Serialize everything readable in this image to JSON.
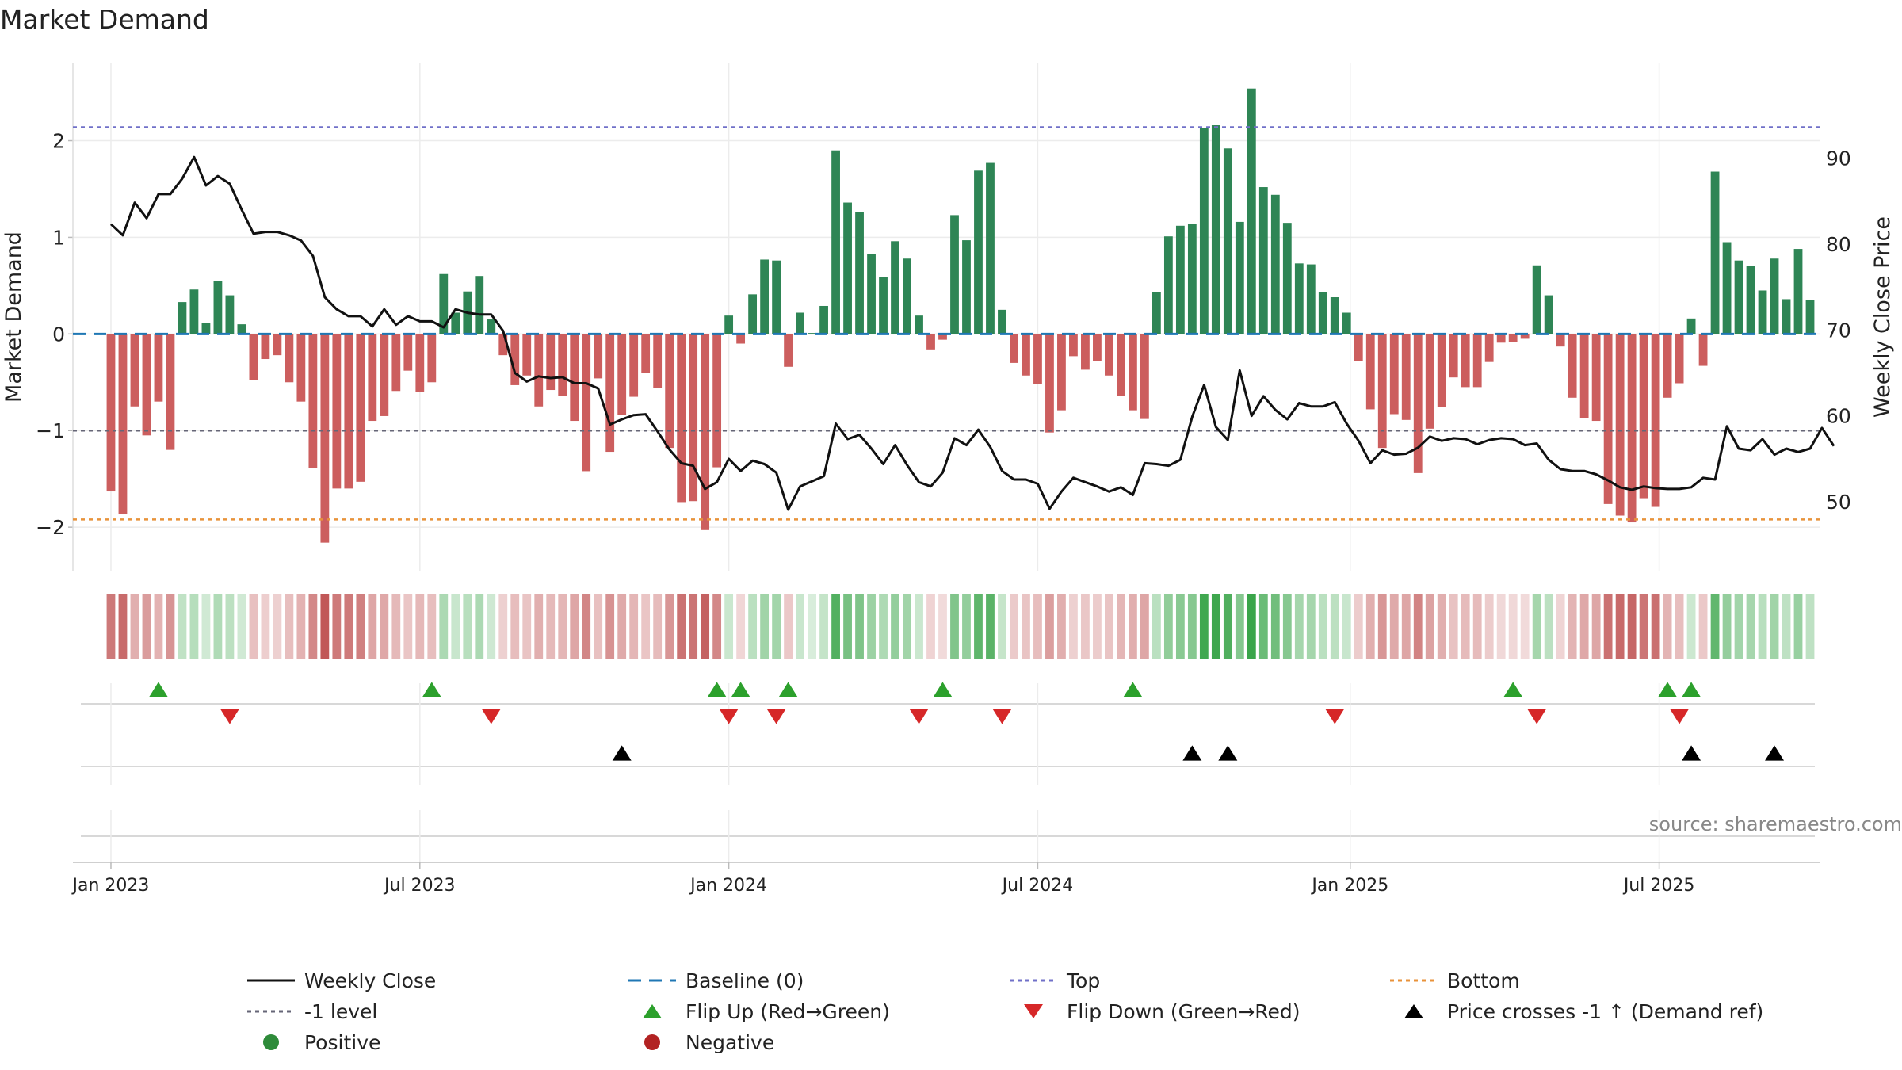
{
  "chart_data": {
    "type": "bar",
    "title": "Market Demand",
    "ylabel_left": "Market Demand",
    "ylabel_right": "Weekly Close Price",
    "source": "source: sharemaestro.com",
    "ylim_left": [
      -2.45,
      2.8
    ],
    "ylim_right": [
      42,
      101
    ],
    "yticks_left": [
      {
        "v": 2,
        "label": "2"
      },
      {
        "v": 1,
        "label": "1"
      },
      {
        "v": 0,
        "label": "0"
      },
      {
        "v": -1,
        "label": "−1"
      },
      {
        "v": -2,
        "label": "−2"
      }
    ],
    "yticks_right": [
      {
        "v": 90,
        "label": "90"
      },
      {
        "v": 80,
        "label": "80"
      },
      {
        "v": 70,
        "label": "70"
      },
      {
        "v": 60,
        "label": "60"
      },
      {
        "v": 50,
        "label": "50"
      }
    ],
    "x_range_weeks": [
      -3.2,
      143.8
    ],
    "xticks": [
      {
        "week": 0,
        "label": "Jan 2023"
      },
      {
        "week": 26,
        "label": "Jul 2023"
      },
      {
        "week": 52,
        "label": "Jan 2024"
      },
      {
        "week": 78,
        "label": "Jul 2024"
      },
      {
        "week": 104.3,
        "label": "Jan 2025"
      },
      {
        "week": 130.3,
        "label": "Jul 2025"
      }
    ],
    "levels": {
      "top": 2.14,
      "bottom": -1.92,
      "minus_one": -1.0,
      "baseline": 0
    },
    "demand": [
      -1.63,
      -1.86,
      -0.75,
      -1.05,
      -0.7,
      -1.2,
      0.33,
      0.46,
      0.11,
      0.55,
      0.4,
      0.1,
      -0.48,
      -0.26,
      -0.22,
      -0.5,
      -0.7,
      -1.39,
      -2.16,
      -1.6,
      -1.6,
      -1.53,
      -0.9,
      -0.85,
      -0.59,
      -0.38,
      -0.6,
      -0.5,
      0.62,
      0.22,
      0.44,
      0.6,
      0.15,
      -0.22,
      -0.53,
      -0.43,
      -0.75,
      -0.58,
      -0.64,
      -0.9,
      -1.42,
      -0.46,
      -1.22,
      -0.84,
      -0.65,
      -0.4,
      -0.56,
      -1.18,
      -1.74,
      -1.73,
      -2.03,
      -1.38,
      0.19,
      -0.1,
      0.41,
      0.77,
      0.76,
      -0.34,
      0.22,
      0.01,
      0.29,
      1.9,
      1.36,
      1.26,
      0.83,
      0.59,
      0.96,
      0.78,
      0.19,
      -0.16,
      -0.06,
      1.23,
      0.97,
      1.69,
      1.77,
      0.25,
      -0.3,
      -0.43,
      -0.52,
      -1.02,
      -0.79,
      -0.23,
      -0.37,
      -0.28,
      -0.43,
      -0.64,
      -0.79,
      -0.88,
      0.43,
      1.01,
      1.12,
      1.14,
      2.13,
      2.16,
      1.92,
      1.16,
      2.54,
      1.52,
      1.44,
      1.15,
      0.73,
      0.72,
      0.43,
      0.38,
      0.22,
      -0.28,
      -0.78,
      -1.18,
      -0.83,
      -0.89,
      -1.44,
      -0.98,
      -0.76,
      -0.45,
      -0.55,
      -0.55,
      -0.29,
      -0.09,
      -0.08,
      -0.05,
      0.71,
      0.4,
      -0.13,
      -0.66,
      -0.87,
      -0.9,
      -1.76,
      -1.88,
      -1.95,
      -1.7,
      -1.79,
      -0.66,
      -0.51,
      0.16,
      -0.33,
      1.68,
      0.95,
      0.76,
      0.7,
      0.45,
      0.78,
      0.36,
      0.88,
      0.35
    ],
    "price": [
      82.3,
      81,
      84.8,
      83,
      85.8,
      85.8,
      87.6,
      90.1,
      86.8,
      87.9,
      87,
      84,
      81.2,
      81.4,
      81.4,
      81,
      80.4,
      78.6,
      73.8,
      72.4,
      71.6,
      71.6,
      70.4,
      72.4,
      70.6,
      71.6,
      71,
      71,
      70.3,
      72.4,
      72,
      71.8,
      71.8,
      69.9,
      65,
      64,
      64.6,
      64.4,
      64.5,
      63.8,
      63.8,
      63.2,
      59,
      59.6,
      60.1,
      60.2,
      58.2,
      56.1,
      54.5,
      54.2,
      51.5,
      52.3,
      55,
      53.6,
      54.8,
      54.4,
      53.4,
      49.1,
      51.8,
      52.4,
      53,
      59.1,
      57.3,
      57.8,
      56.2,
      54.4,
      56.6,
      54.3,
      52.3,
      51.8,
      53.4,
      57.4,
      56.6,
      58.4,
      56.4,
      53.6,
      52.6,
      52.6,
      52.1,
      49.2,
      51.2,
      52.8,
      52.3,
      51.8,
      51.2,
      51.7,
      50.8,
      54.5,
      54.4,
      54.2,
      54.9,
      59.9,
      63.6,
      58.7,
      57.2,
      65.3,
      60,
      62.3,
      60.7,
      59.6,
      61.5,
      61.1,
      61.1,
      61.6,
      59.1,
      57.1,
      54.5,
      56,
      55.5,
      55.6,
      56.3,
      57.6,
      57.1,
      57.4,
      57.3,
      56.7,
      57.2,
      57.4,
      57.3,
      56.6,
      56.8,
      54.9,
      53.8,
      53.6,
      53.6,
      53.2,
      52.5,
      51.7,
      51.4,
      51.8,
      51.6,
      51.5,
      51.5,
      51.7,
      52.8,
      52.6,
      58.8,
      56.2,
      56,
      57.3,
      55.5,
      56.2,
      55.8,
      56.2,
      58.6,
      56.5
    ],
    "flip_up_weeks": [
      4,
      27,
      51,
      53,
      57,
      70,
      86,
      118,
      131,
      133
    ],
    "flip_down_weeks": [
      10,
      32,
      52,
      56,
      68,
      75,
      103,
      120,
      132
    ],
    "price_cross_weeks": [
      43,
      91,
      94,
      133,
      140
    ],
    "legend": [
      {
        "label": "Weekly Close",
        "kind": "line",
        "color": "#111111"
      },
      {
        "label": "Baseline (0)",
        "kind": "dash",
        "color": "#1f77b4"
      },
      {
        "label": "Top",
        "kind": "dot",
        "color": "#7070c8"
      },
      {
        "label": "Bottom",
        "kind": "dot",
        "color": "#e8923a"
      },
      {
        "label": "-1 level",
        "kind": "dot",
        "color": "#666677"
      },
      {
        "label": "Flip Up (Red→Green)",
        "kind": "tri-up",
        "color": "#2ca02c"
      },
      {
        "label": "Flip Down (Green→Red)",
        "kind": "tri-down",
        "color": "#d62728"
      },
      {
        "label": "Price crosses -1 ↑ (Demand ref)",
        "kind": "tri-up",
        "color": "#000000"
      },
      {
        "label": "Positive",
        "kind": "circle",
        "color": "#2e8b3a"
      },
      {
        "label": "Negative",
        "kind": "circle",
        "color": "#b22222"
      }
    ],
    "colors": {
      "positive_bar": "#2e8555",
      "negative_bar": "#cc5e5e",
      "price_line": "#111111",
      "flip_up": "#2ca02c",
      "flip_down": "#d62728",
      "cross": "#000000",
      "heat_pos": "#3aa54a",
      "heat_neg": "#c05555"
    }
  }
}
